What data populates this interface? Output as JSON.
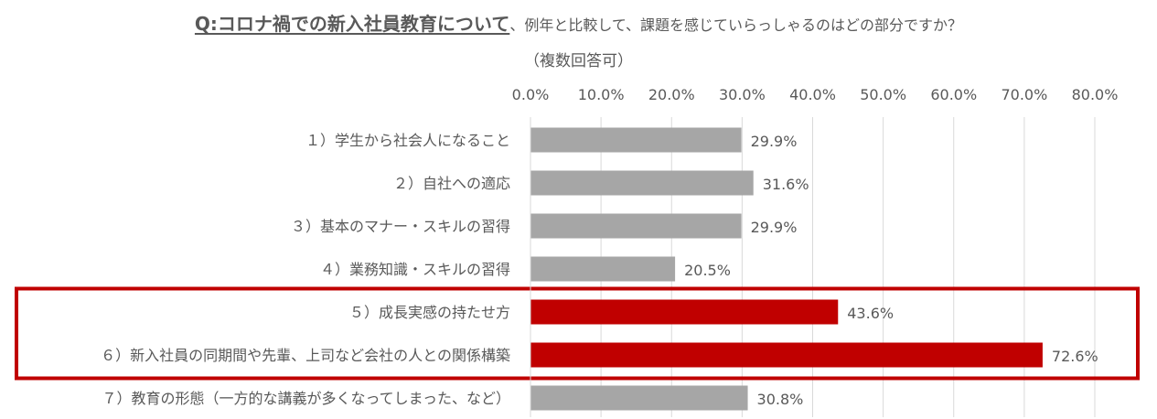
{
  "chart_data": {
    "type": "bar",
    "orientation": "horizontal",
    "title": "Q:コロナ禍での新入社員教育について",
    "title_rest": "、例年と比較して、課題を感じていらっしゃるのはどの部分ですか？",
    "subtitle": "（複数回答可）",
    "categories": [
      "１）学生から社会人になること",
      "２）自社への適応",
      "３）基本のマナー・スキルの習得",
      "４）業務知識・スキルの習得",
      "５）成長実感の持たせ方",
      "６）新入社員の同期間や先輩、上司など会社の人との関係構築",
      "７）教育の形態（一方的な講義が多くなってしまった、など）"
    ],
    "values": [
      29.9,
      31.6,
      29.9,
      20.5,
      43.6,
      72.6,
      30.8
    ],
    "value_labels": [
      "29.9%",
      "31.6%",
      "29.9%",
      "20.5%",
      "43.6%",
      "72.6%",
      "30.8%"
    ],
    "highlighted": [
      false,
      false,
      false,
      false,
      true,
      true,
      false
    ],
    "xlim": [
      0,
      80
    ],
    "x_ticks": [
      0,
      10,
      20,
      30,
      40,
      50,
      60,
      70,
      80
    ],
    "x_tick_labels": [
      "0.0%",
      "10.0%",
      "20.0%",
      "30.0%",
      "40.0%",
      "50.0%",
      "60.0%",
      "70.0%",
      "80.0%"
    ],
    "axis_position": "top",
    "grid": true,
    "legend": "none",
    "colors": {
      "bar": "#a6a6a6",
      "highlight": "#c00000",
      "highlight_box": "#c00000",
      "grid": "#d9d9d9",
      "text": "#595959"
    }
  }
}
